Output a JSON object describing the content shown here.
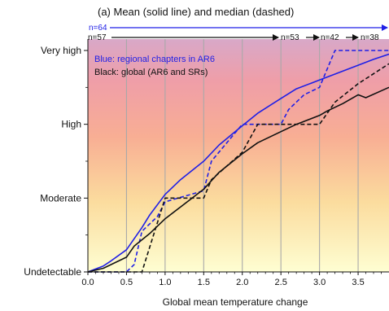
{
  "chart_data": {
    "type": "line",
    "title": "(a) Mean (solid line) and median (dashed)",
    "xlabel": "Global mean temperature change",
    "ylabel": "",
    "xlim": [
      0,
      3.9
    ],
    "ylim": [
      0,
      3
    ],
    "xticks": [
      "0.0",
      "0.5",
      "1.0",
      "1.5",
      "2.0",
      "2.5",
      "3.0",
      "3.5"
    ],
    "yticks": [
      "Undetectable",
      "Moderate",
      "High",
      "Very high"
    ],
    "grid": "vertical",
    "background": "gradient (yellow at bottom, red/pink at top)",
    "annotations": {
      "blue_label": "Blue: regional chapters in AR6",
      "black_label": "Black: global (AR6 and SRs)",
      "n_blue": "n=64",
      "n_black": [
        "n=57",
        "n=53",
        "n=42",
        "n=38"
      ]
    },
    "series": [
      {
        "name": "Blue: regional chapters in AR6",
        "style": "solid",
        "color": "#1f1fe6",
        "x": [
          0,
          0.2,
          0.3,
          0.5,
          0.6,
          0.7,
          0.8,
          1.0,
          1.2,
          1.5,
          1.7,
          2.0,
          2.2,
          2.5,
          2.7,
          3.0,
          3.2,
          3.5,
          3.7,
          3.9
        ],
        "y": [
          0,
          0.08,
          0.15,
          0.3,
          0.45,
          0.6,
          0.77,
          1.05,
          1.25,
          1.5,
          1.72,
          1.98,
          2.15,
          2.35,
          2.48,
          2.6,
          2.68,
          2.8,
          2.88,
          2.95
        ]
      },
      {
        "name": "Blue: regional chapters in AR6",
        "style": "dashed",
        "color": "#1f1fe6",
        "x": [
          0,
          0.3,
          0.5,
          0.6,
          0.7,
          0.9,
          1.0,
          1.5,
          1.6,
          2.0,
          2.5,
          2.6,
          2.8,
          3.0,
          3.2,
          3.9
        ],
        "y": [
          0,
          0,
          0,
          0.1,
          0.55,
          0.75,
          0.95,
          1.1,
          1.5,
          2.0,
          2.0,
          2.2,
          2.4,
          2.5,
          3.0,
          3.0
        ]
      },
      {
        "name": "Black: global (AR6 and SRs)",
        "style": "solid",
        "color": "#111111",
        "x": [
          0,
          0.2,
          0.5,
          0.6,
          0.8,
          1.0,
          1.2,
          1.5,
          1.7,
          2.0,
          2.2,
          2.5,
          2.7,
          3.0,
          3.1,
          3.3,
          3.5,
          3.6,
          3.9
        ],
        "y": [
          0,
          0.05,
          0.2,
          0.35,
          0.52,
          0.72,
          0.88,
          1.12,
          1.35,
          1.6,
          1.75,
          1.9,
          2.0,
          2.12,
          2.18,
          2.28,
          2.4,
          2.36,
          2.5
        ]
      },
      {
        "name": "Black: global (AR6 and SRs)",
        "style": "dashed",
        "color": "#111111",
        "x": [
          0,
          0.7,
          1.0,
          1.5,
          1.6,
          2.0,
          2.2,
          2.5,
          3.0,
          3.2,
          3.5,
          3.9
        ],
        "y": [
          0,
          0,
          1.0,
          1.0,
          1.25,
          1.62,
          2.0,
          2.0,
          2.0,
          2.3,
          2.55,
          2.82
        ]
      }
    ]
  }
}
